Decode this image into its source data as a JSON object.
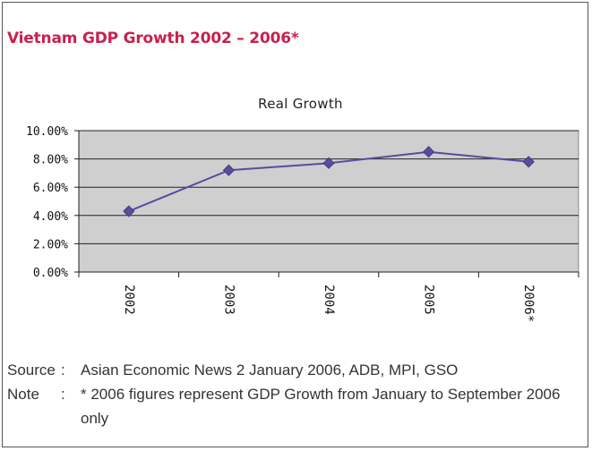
{
  "heading": "Vietnam GDP Growth 2002 – 2006*",
  "chart_data": {
    "type": "line",
    "title": "Real Growth",
    "xlabel": "",
    "ylabel": "",
    "categories": [
      "2002",
      "2003",
      "2004",
      "2005",
      "2006*"
    ],
    "series": [
      {
        "values": [
          4.3,
          7.2,
          7.7,
          8.5,
          7.8
        ]
      }
    ],
    "ylim": [
      0,
      10
    ],
    "y_ticks": [
      "0.00%",
      "2.00%",
      "4.00%",
      "6.00%",
      "8.00%",
      "10.00%"
    ],
    "grid": true,
    "line_color": "#5b4a9e",
    "plot_background": "#cfcfcf"
  },
  "notes": [
    {
      "label": "Source",
      "sep": ":",
      "text": "Asian Economic News 2 January 2006, ADB, MPI, GSO"
    },
    {
      "label": "Note",
      "sep": ":",
      "text": "* 2006 figures represent GDP Growth from January to September 2006 only"
    }
  ]
}
